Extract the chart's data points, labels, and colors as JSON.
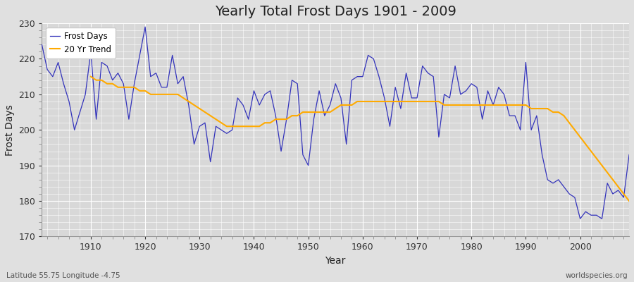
{
  "title": "Yearly Total Frost Days 1901 - 2009",
  "xlabel": "Year",
  "ylabel": "Frost Days",
  "ylim": [
    170,
    230
  ],
  "xlim": [
    1901,
    2009
  ],
  "yticks": [
    170,
    180,
    190,
    200,
    210,
    220,
    230
  ],
  "xticks": [
    1910,
    1920,
    1930,
    1940,
    1950,
    1960,
    1970,
    1980,
    1990,
    2000
  ],
  "frost_color": "#3333bb",
  "trend_color": "#ffaa00",
  "bg_color": "#e0e0e0",
  "plot_bg_color": "#d8d8d8",
  "grid_color": "#ffffff",
  "legend_labels": [
    "Frost Days",
    "20 Yr Trend"
  ],
  "bottom_left_text": "Latitude 55.75 Longitude -4.75",
  "bottom_right_text": "worldspecies.org",
  "years": [
    1901,
    1902,
    1903,
    1904,
    1905,
    1906,
    1907,
    1908,
    1909,
    1910,
    1911,
    1912,
    1913,
    1914,
    1915,
    1916,
    1917,
    1918,
    1919,
    1920,
    1921,
    1922,
    1923,
    1924,
    1925,
    1926,
    1927,
    1928,
    1929,
    1930,
    1931,
    1932,
    1933,
    1934,
    1935,
    1936,
    1937,
    1938,
    1939,
    1940,
    1941,
    1942,
    1943,
    1944,
    1945,
    1946,
    1947,
    1948,
    1949,
    1950,
    1951,
    1952,
    1953,
    1954,
    1955,
    1956,
    1957,
    1958,
    1959,
    1960,
    1961,
    1962,
    1963,
    1964,
    1965,
    1966,
    1967,
    1968,
    1969,
    1970,
    1971,
    1972,
    1973,
    1974,
    1975,
    1976,
    1977,
    1978,
    1979,
    1980,
    1981,
    1982,
    1983,
    1984,
    1985,
    1986,
    1987,
    1988,
    1989,
    1990,
    1991,
    1992,
    1993,
    1994,
    1995,
    1996,
    1997,
    1998,
    1999,
    2000,
    2001,
    2002,
    2003,
    2004,
    2005,
    2006,
    2007,
    2008,
    2009
  ],
  "frost_days": [
    224,
    217,
    215,
    219,
    213,
    208,
    200,
    205,
    210,
    222,
    203,
    219,
    218,
    214,
    216,
    213,
    203,
    213,
    221,
    229,
    215,
    216,
    212,
    212,
    221,
    213,
    215,
    207,
    196,
    201,
    202,
    191,
    201,
    200,
    199,
    200,
    209,
    207,
    203,
    211,
    207,
    210,
    211,
    204,
    194,
    203,
    214,
    213,
    193,
    190,
    203,
    211,
    204,
    207,
    213,
    209,
    196,
    214,
    215,
    215,
    221,
    220,
    215,
    209,
    201,
    212,
    206,
    216,
    209,
    209,
    218,
    216,
    215,
    198,
    210,
    209,
    218,
    210,
    211,
    213,
    212,
    203,
    211,
    207,
    212,
    210,
    204,
    204,
    200,
    219,
    200,
    204,
    193,
    186,
    185,
    186,
    184,
    182,
    181,
    175,
    177,
    176,
    176,
    175,
    185,
    182,
    183,
    181,
    193
  ],
  "trend_years": [
    1910,
    1911,
    1912,
    1913,
    1914,
    1915,
    1916,
    1917,
    1918,
    1919,
    1920,
    1921,
    1922,
    1923,
    1924,
    1925,
    1926,
    1927,
    1928,
    1929,
    1930,
    1931,
    1932,
    1933,
    1934,
    1935,
    1936,
    1937,
    1938,
    1939,
    1940,
    1941,
    1942,
    1943,
    1944,
    1945,
    1946,
    1947,
    1948,
    1949,
    1950,
    1951,
    1952,
    1953,
    1954,
    1955,
    1956,
    1957,
    1958,
    1959,
    1960,
    1961,
    1962,
    1963,
    1964,
    1965,
    1966,
    1967,
    1968,
    1969,
    1970,
    1971,
    1972,
    1973,
    1974,
    1975,
    1976,
    1977,
    1978,
    1979,
    1980,
    1981,
    1982,
    1983,
    1984,
    1985,
    1986,
    1987,
    1988,
    1989,
    1990,
    1991,
    1992,
    1993,
    1994,
    1995,
    1996,
    1997,
    1998,
    1999,
    2000,
    2001,
    2002,
    2003,
    2004,
    2005,
    2006,
    2007,
    2008,
    2009
  ],
  "trend_values": [
    215,
    214,
    214,
    213,
    213,
    212,
    212,
    212,
    212,
    211,
    211,
    210,
    210,
    210,
    210,
    210,
    210,
    209,
    208,
    207,
    206,
    205,
    204,
    203,
    202,
    201,
    201,
    201,
    201,
    201,
    201,
    201,
    202,
    202,
    203,
    203,
    203,
    204,
    204,
    205,
    205,
    205,
    205,
    205,
    205,
    206,
    207,
    207,
    207,
    208,
    208,
    208,
    208,
    208,
    208,
    208,
    208,
    208,
    208,
    208,
    208,
    208,
    208,
    208,
    208,
    207,
    207,
    207,
    207,
    207,
    207,
    207,
    207,
    207,
    207,
    207,
    207,
    207,
    207,
    207,
    207,
    206,
    206,
    206,
    206,
    205,
    205,
    204,
    202,
    200,
    198,
    196,
    194,
    192,
    190,
    188,
    186,
    184,
    182,
    180
  ]
}
